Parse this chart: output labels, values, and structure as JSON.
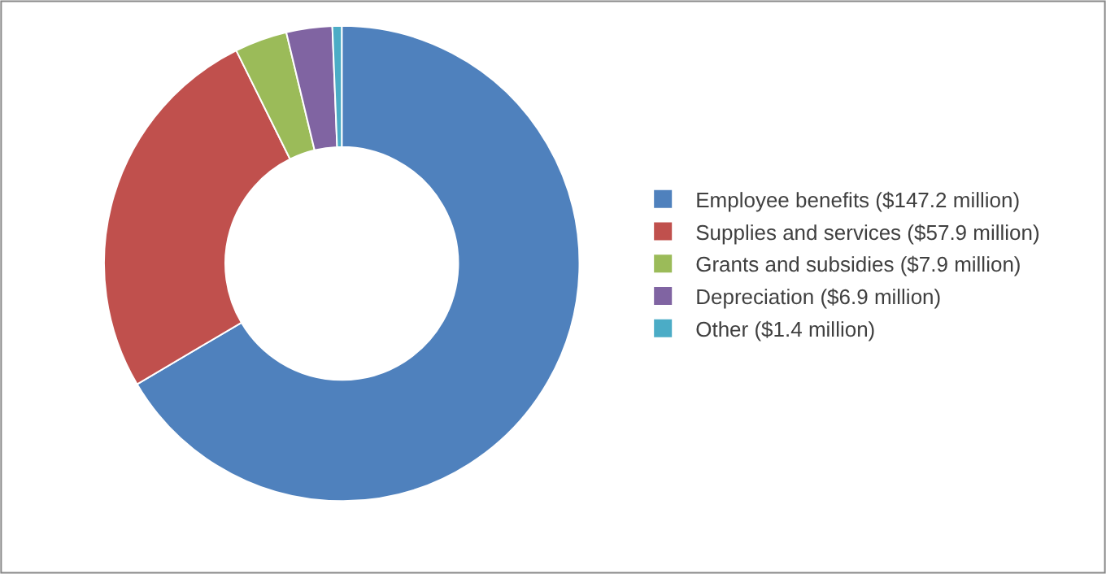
{
  "chart_data": {
    "type": "donut",
    "categories": [
      "Employee benefits ($147.2 million)",
      "Supplies and services ($57.9 million)",
      "Grants and subsidies ($7.9 million)",
      "Depreciation ($6.9 million)",
      "Other ($1.4 million)"
    ],
    "values": [
      147.2,
      57.9,
      7.9,
      6.9,
      1.4
    ],
    "colors": [
      "#4f81bd",
      "#c0504d",
      "#9bbb59",
      "#8064a2",
      "#4bacc6"
    ],
    "legend": "right"
  }
}
